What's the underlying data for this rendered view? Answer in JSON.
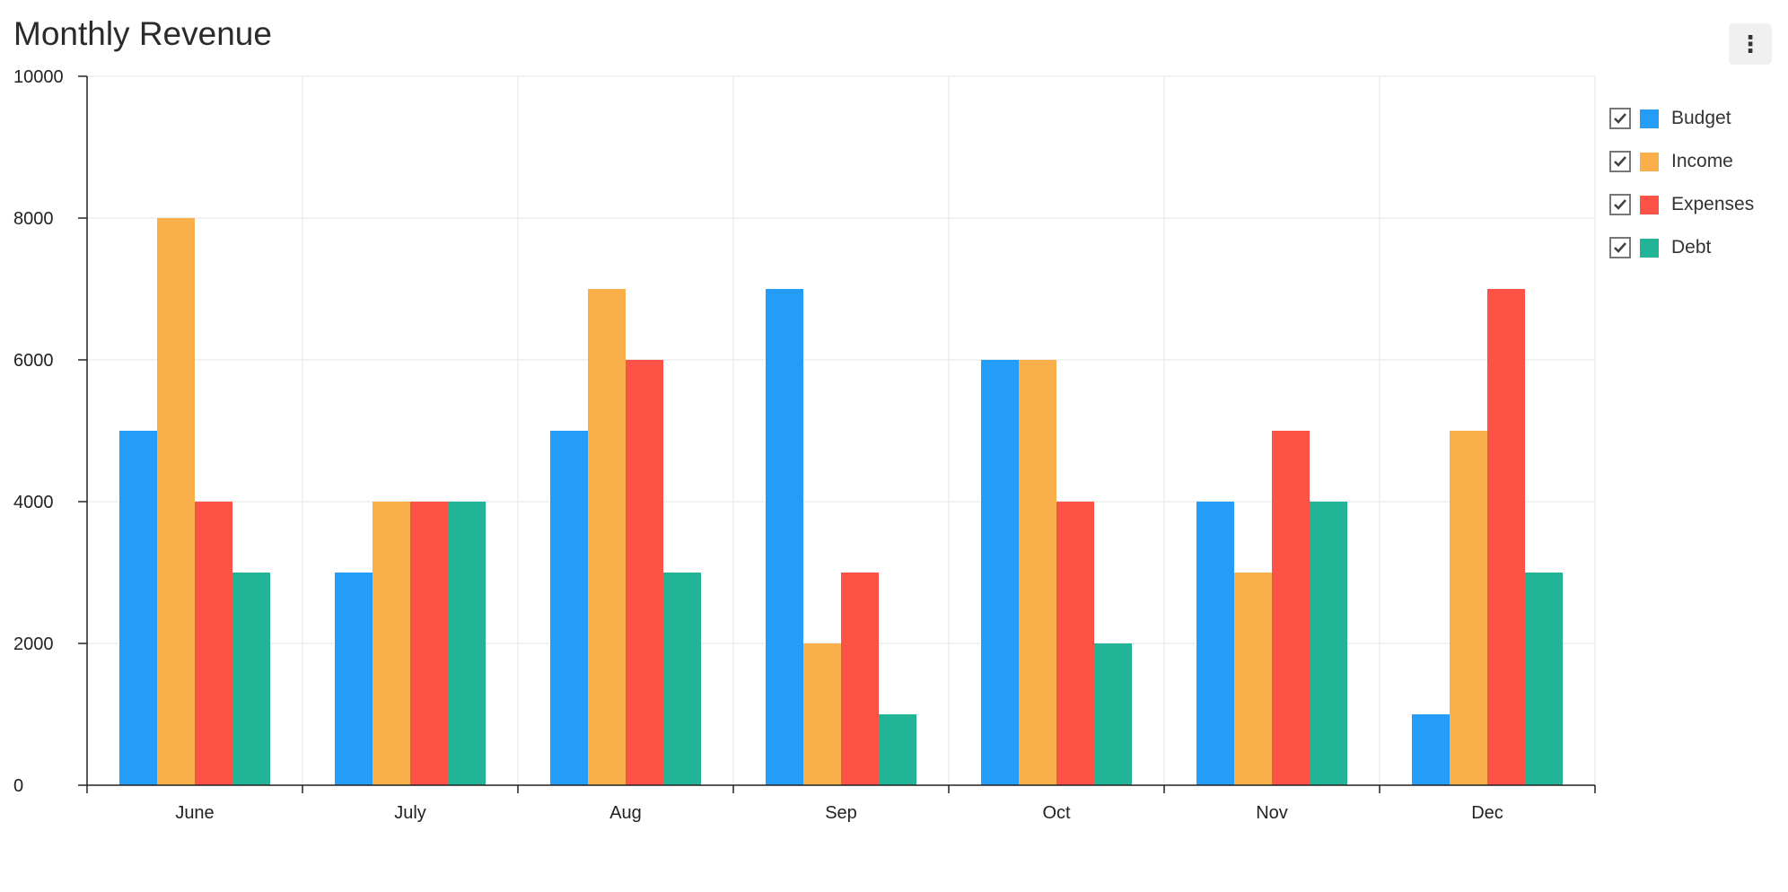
{
  "title": "Monthly Revenue",
  "menu_icon": "vertical-ellipsis-icon",
  "chart_data": {
    "type": "bar",
    "title": "Monthly Revenue",
    "categories": [
      "June",
      "July",
      "Aug",
      "Sep",
      "Oct",
      "Nov",
      "Dec"
    ],
    "series": [
      {
        "name": "Budget",
        "color": "#239DF7",
        "values": [
          5000,
          3000,
          5000,
          7000,
          6000,
          4000,
          1000
        ]
      },
      {
        "name": "Income",
        "color": "#FAB04A",
        "values": [
          8000,
          4000,
          7000,
          2000,
          6000,
          3000,
          5000
        ]
      },
      {
        "name": "Expenses",
        "color": "#FD5246",
        "values": [
          4000,
          4000,
          6000,
          3000,
          4000,
          5000,
          7000
        ]
      },
      {
        "name": "Debt",
        "color": "#21B497",
        "values": [
          3000,
          4000,
          3000,
          1000,
          2000,
          4000,
          3000
        ]
      }
    ],
    "y_ticks": [
      "0",
      "2000",
      "4000",
      "6000",
      "8000",
      "10000"
    ],
    "ylim": [
      0,
      10000
    ],
    "xlabel": "",
    "ylabel": "",
    "grid": true,
    "legend_position": "right",
    "legend_checked": [
      true,
      true,
      true,
      true
    ]
  }
}
